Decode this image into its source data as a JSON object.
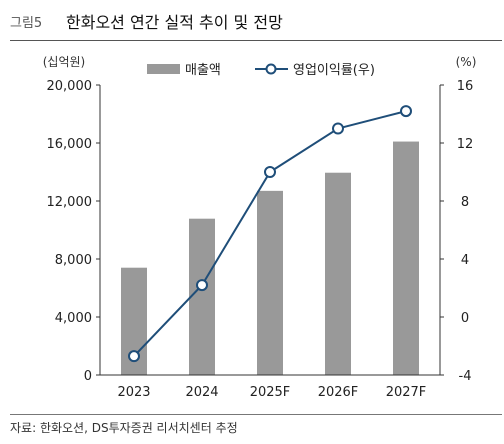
{
  "header": {
    "figure_label": "그림5",
    "title": "한화오션 연간 실적 추이 및 전망"
  },
  "chart_data": {
    "type": "bar",
    "categories": [
      "2023",
      "2024",
      "2025F",
      "2026F",
      "2027F"
    ],
    "series": [
      {
        "name": "매출액",
        "type": "bar",
        "axis": "left",
        "color": "#999999",
        "values": [
          7400,
          10780,
          12700,
          13950,
          16100
        ]
      },
      {
        "name": "영업이익률(우)",
        "type": "line",
        "axis": "right",
        "color": "#1f4e79",
        "values": [
          -2.7,
          2.2,
          10.0,
          13.0,
          14.2
        ]
      }
    ],
    "y_left": {
      "unit": "(십억원)",
      "range": [
        0,
        20000
      ],
      "ticks": [
        "0",
        "4,000",
        "8,000",
        "12,000",
        "16,000",
        "20,000"
      ]
    },
    "y_right": {
      "unit": "(%)",
      "range": [
        -4,
        16
      ],
      "ticks": [
        "-4",
        "0",
        "4",
        "8",
        "12",
        "16"
      ]
    },
    "grid": false,
    "legend_position": "top-center"
  },
  "footer": {
    "source": "자료: 한화오션, DS투자증권 리서치센터 추정"
  }
}
